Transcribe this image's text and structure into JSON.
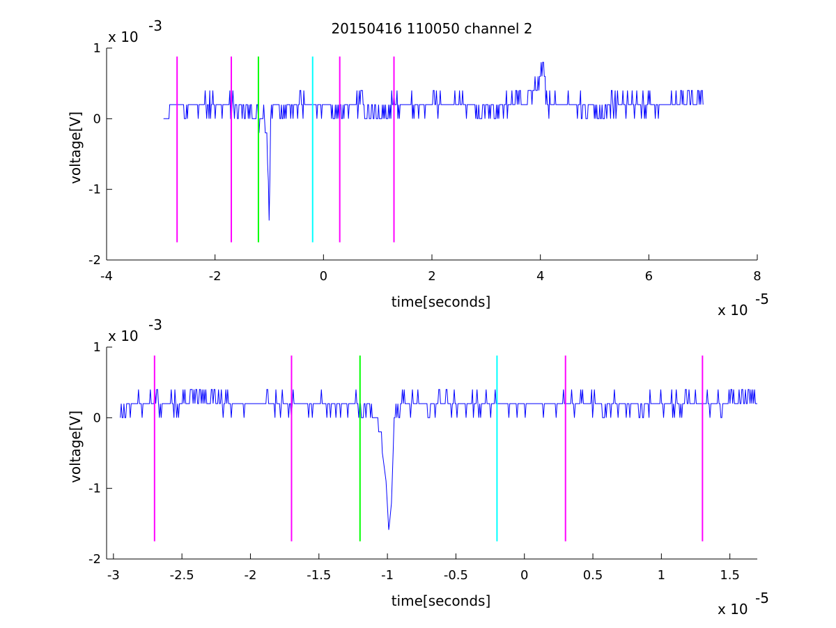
{
  "figure": {
    "title": "20150416 110050 channel 2"
  },
  "chart_data": [
    {
      "type": "line",
      "title": "20150416 110050 channel 2",
      "xlabel": "time[seconds]",
      "ylabel": "voltage[V]",
      "x_exponent_label": "x 10",
      "x_exponent": "-5",
      "y_exponent_label": "x 10",
      "y_exponent": "-3",
      "xlim": [
        -4e-05,
        8e-05
      ],
      "ylim": [
        -0.002,
        0.001
      ],
      "x_ticks": [
        -4e-05,
        -2e-05,
        0,
        2e-05,
        4e-05,
        6e-05,
        8e-05
      ],
      "x_tick_labels": [
        "-4",
        "-2",
        "0",
        "2",
        "4",
        "6",
        "8"
      ],
      "y_ticks": [
        -0.002,
        -0.001,
        0,
        0.001
      ],
      "y_tick_labels": [
        "-2",
        "-1",
        "0",
        "1"
      ],
      "grid": false,
      "series": [
        {
          "kind": "signal",
          "color": "#0000ff",
          "x": [
            -2.95e-05,
            -2.7e-05,
            -2.5e-05,
            -2.2e-05,
            -2e-05,
            -1.8e-05,
            -1.5e-05,
            -1.3e-05,
            -1.1e-05,
            -1.05e-05,
            -1.01e-05,
            -1e-05,
            -9.8e-06,
            -9.6e-06,
            -9e-06,
            -7e-06,
            -4e-06,
            -2e-06,
            0,
            2e-06,
            5e-06,
            1e-05,
            1.5e-05,
            2e-05,
            2.5e-05,
            3e-05,
            3.5e-05,
            3.8e-05,
            4e-05,
            4.05e-05,
            4.1e-05,
            4.2e-05,
            4.5e-05,
            5e-05,
            5.5e-05,
            6e-05,
            6.5e-05,
            7e-05
          ],
          "y": [
            0,
            0.0002,
            0.0001,
            0.0002,
            0.0001,
            0.0002,
            0,
            0.0001,
            -0.0001,
            -0.0003,
            -0.001,
            -0.0016,
            -0.0003,
            0.0001,
            0.0002,
            0,
            0.0002,
            0.0001,
            0.0002,
            0,
            0.0002,
            0,
            0.0002,
            0.0001,
            0.0002,
            0,
            0.0002,
            0.0003,
            0.0005,
            0.0008,
            0.0003,
            0.0001,
            0.0002,
            0,
            0.0002,
            0.0001,
            0.0002,
            0.0002
          ]
        }
      ],
      "markers": [
        {
          "x": -2.7e-05,
          "color": "#ff00ff",
          "y_range": [
            -0.00175,
            0.00088
          ]
        },
        {
          "x": -1.7e-05,
          "color": "#ff00ff",
          "y_range": [
            -0.00175,
            0.00088
          ]
        },
        {
          "x": -1.2e-05,
          "color": "#00ff00",
          "y_range": [
            -0.00175,
            0.00088
          ]
        },
        {
          "x": -2e-06,
          "color": "#00ffff",
          "y_range": [
            -0.00175,
            0.00088
          ]
        },
        {
          "x": 3e-06,
          "color": "#ff00ff",
          "y_range": [
            -0.00175,
            0.00088
          ]
        },
        {
          "x": 1.3e-05,
          "color": "#ff00ff",
          "y_range": [
            -0.00175,
            0.00088
          ]
        }
      ]
    },
    {
      "type": "line",
      "xlabel": "time[seconds]",
      "ylabel": "voltage[V]",
      "x_exponent_label": "x 10",
      "x_exponent": "-5",
      "y_exponent_label": "x 10",
      "y_exponent": "-3",
      "xlim": [
        -3.05e-05,
        1.7e-05
      ],
      "ylim": [
        -0.002,
        0.001
      ],
      "x_ticks": [
        -3e-05,
        -2.5e-05,
        -2e-05,
        -1.5e-05,
        -1e-05,
        -5e-06,
        0,
        5e-06,
        1e-05,
        1.5e-05
      ],
      "x_tick_labels": [
        "-3",
        "-2.5",
        "-2",
        "-1.5",
        "-1",
        "-0.5",
        "0",
        "0.5",
        "1",
        "1.5"
      ],
      "y_ticks": [
        -0.002,
        -0.001,
        0,
        0.001
      ],
      "y_tick_labels": [
        "-2",
        "-1",
        "0",
        "1"
      ],
      "grid": false,
      "series": [
        {
          "kind": "signal",
          "color": "#0000ff",
          "x": [
            -2.95e-05,
            -2.8e-05,
            -2.6e-05,
            -2.4e-05,
            -2.2e-05,
            -2e-05,
            -1.8e-05,
            -1.6e-05,
            -1.4e-05,
            -1.2e-05,
            -1.1e-05,
            -1.05e-05,
            -1.01e-05,
            -9.9e-06,
            -9.7e-06,
            -9.5e-06,
            -9e-06,
            -8e-06,
            -6e-06,
            -4e-06,
            -2e-06,
            0,
            2e-06,
            4e-06,
            6e-06,
            8e-06,
            1e-05,
            1.2e-05,
            1.4e-05,
            1.6e-05,
            1.7e-05
          ],
          "y": [
            0,
            0.0002,
            0.0001,
            0.0003,
            0.0002,
            0.0001,
            0.0002,
            0.0001,
            0.0002,
            0.0001,
            0,
            -0.0003,
            -0.0009,
            -0.0016,
            -0.0012,
            0,
            0.0001,
            0.0002,
            0.0001,
            0.0002,
            0.0001,
            0.0002,
            0.0001,
            0.0002,
            0.0001,
            0.0002,
            0.0001,
            0.0002,
            0.0001,
            0.0003,
            0.0002
          ]
        }
      ],
      "markers": [
        {
          "x": -2.7e-05,
          "color": "#ff00ff",
          "y_range": [
            -0.00175,
            0.00088
          ]
        },
        {
          "x": -1.7e-05,
          "color": "#ff00ff",
          "y_range": [
            -0.00175,
            0.00088
          ]
        },
        {
          "x": -1.2e-05,
          "color": "#00ff00",
          "y_range": [
            -0.00175,
            0.00088
          ]
        },
        {
          "x": -2e-06,
          "color": "#00ffff",
          "y_range": [
            -0.00175,
            0.00088
          ]
        },
        {
          "x": 3e-06,
          "color": "#ff00ff",
          "y_range": [
            -0.00175,
            0.00088
          ]
        },
        {
          "x": 1.3e-05,
          "color": "#ff00ff",
          "y_range": [
            -0.00175,
            0.00088
          ]
        }
      ]
    }
  ]
}
